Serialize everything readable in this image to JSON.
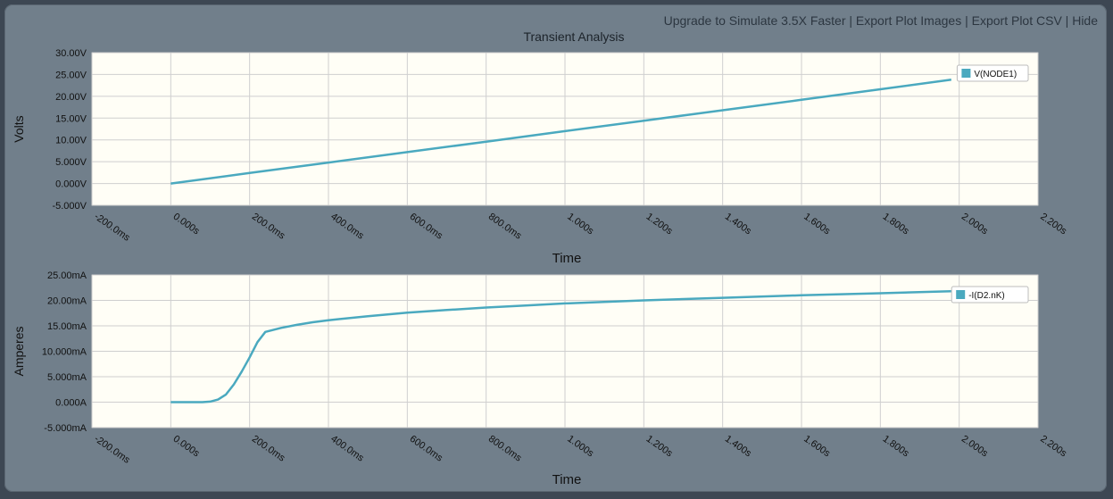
{
  "links": {
    "upgrade": "Upgrade to Simulate 3.5X Faster",
    "export_images": "Export Plot Images",
    "export_csv": "Export Plot CSV",
    "hide": "Hide",
    "separator": "|"
  },
  "colors": {
    "panel_bg": "#717f8b",
    "plot_bg": "#fffef6",
    "grid": "#cfcfcf",
    "series": "#4aa9bf",
    "text": "#111111"
  },
  "chart_data": [
    {
      "type": "line",
      "title": "Transient Analysis",
      "xlabel": "Time",
      "ylabel": "Volts",
      "xlim": [
        -0.2,
        2.2
      ],
      "ylim": [
        -5,
        30
      ],
      "xticks": [
        -0.2,
        0,
        0.2,
        0.4,
        0.6,
        0.8,
        1.0,
        1.2,
        1.4,
        1.6,
        1.8,
        2.0,
        2.2
      ],
      "xtick_labels": [
        "-200.0ms",
        "0.000s",
        "200.0ms",
        "400.0ms",
        "600.0ms",
        "800.0ms",
        "1.000s",
        "1.200s",
        "1.400s",
        "1.600s",
        "1.800s",
        "2.000s",
        "2.200s"
      ],
      "yticks": [
        -5,
        0,
        5,
        10,
        15,
        20,
        25,
        30
      ],
      "ytick_labels": [
        "-5.000V",
        "0.000V",
        "5.000V",
        "10.00V",
        "15.00V",
        "20.00V",
        "25.00V",
        "30.00V"
      ],
      "grid": true,
      "legend_position": "top-right",
      "series": [
        {
          "name": "V(NODE1)",
          "x": [
            0,
            0.2,
            0.4,
            0.6,
            0.8,
            1.0,
            1.2,
            1.4,
            1.6,
            1.8,
            1.98
          ],
          "y": [
            0.0,
            2.4,
            4.8,
            7.2,
            9.6,
            12.0,
            14.4,
            16.8,
            19.2,
            21.6,
            23.8
          ]
        }
      ]
    },
    {
      "type": "line",
      "title": "",
      "xlabel": "Time",
      "ylabel": "Amperes",
      "xlim": [
        -0.2,
        2.2
      ],
      "ylim": [
        -5,
        25
      ],
      "xticks": [
        -0.2,
        0,
        0.2,
        0.4,
        0.6,
        0.8,
        1.0,
        1.2,
        1.4,
        1.6,
        1.8,
        2.0,
        2.2
      ],
      "xtick_labels": [
        "-200.0ms",
        "0.000s",
        "200.0ms",
        "400.0ms",
        "600.0ms",
        "800.0ms",
        "1.000s",
        "1.200s",
        "1.400s",
        "1.600s",
        "1.800s",
        "2.000s",
        "2.200s"
      ],
      "yticks": [
        -5,
        0,
        5,
        10,
        15,
        20,
        25
      ],
      "ytick_labels": [
        "-5.000mA",
        "0.000A",
        "5.000mA",
        "10.000mA",
        "15.00mA",
        "20.00mA",
        "25.00mA"
      ],
      "grid": true,
      "legend_position": "top-right",
      "series": [
        {
          "name": "-I(D2.nK)",
          "x": [
            0,
            0.05,
            0.08,
            0.1,
            0.12,
            0.14,
            0.16,
            0.18,
            0.2,
            0.22,
            0.24,
            0.28,
            0.32,
            0.36,
            0.4,
            0.5,
            0.6,
            0.7,
            0.8,
            0.9,
            1.0,
            1.2,
            1.4,
            1.6,
            1.8,
            1.98
          ],
          "y": [
            0.0,
            0.0,
            0.0,
            0.1,
            0.5,
            1.5,
            3.5,
            6.0,
            8.8,
            11.8,
            13.8,
            14.6,
            15.2,
            15.7,
            16.1,
            16.9,
            17.6,
            18.1,
            18.6,
            19.0,
            19.4,
            20.0,
            20.5,
            21.0,
            21.4,
            21.8
          ]
        }
      ]
    }
  ]
}
